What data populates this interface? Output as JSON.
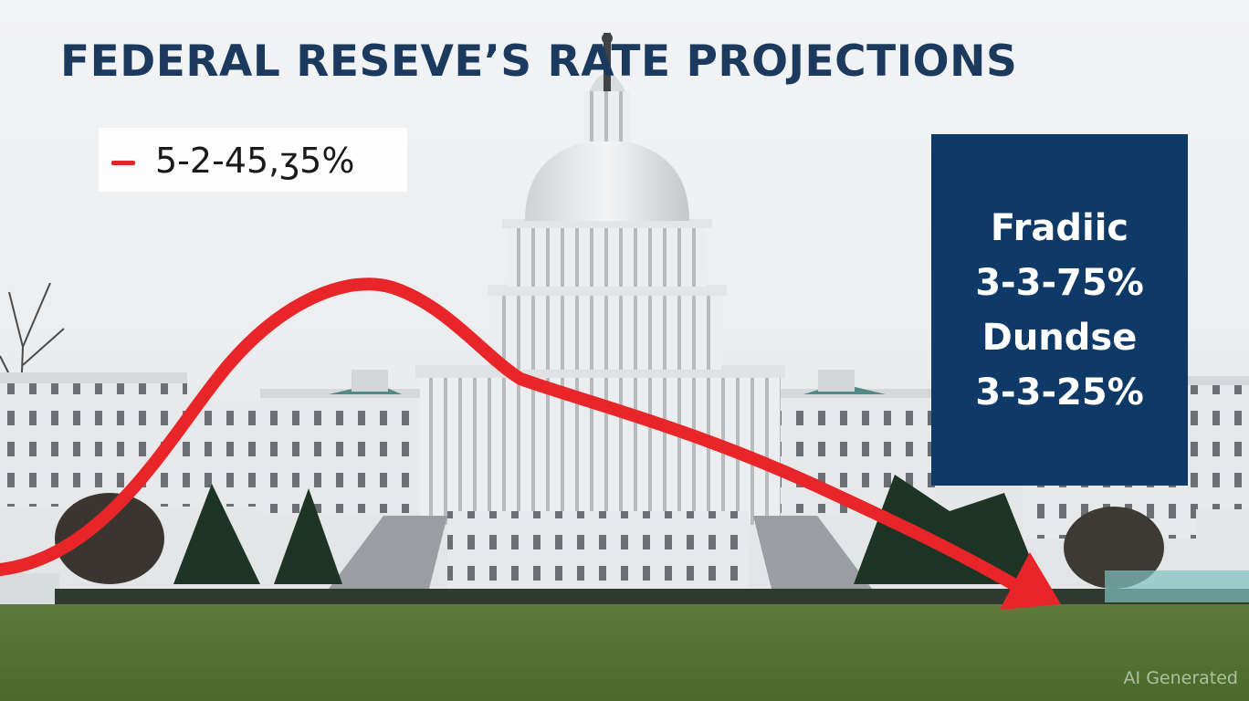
{
  "headline": "FEDERAL RESEVE’S RATE PROJECTIONS",
  "legend": {
    "text": "5-2-45,ʒ5%",
    "color": "#e0262a"
  },
  "panel": {
    "background": "#0f3a68",
    "lines": [
      "Fradiic",
      "3-3-75%",
      "Dundse",
      "3-3-25%"
    ]
  },
  "trend_arrow": {
    "color": "#e8262a",
    "direction": "down-right"
  },
  "watermark": "AI Generated",
  "scene_icons": [
    "capitol-building",
    "trees",
    "lawn"
  ]
}
